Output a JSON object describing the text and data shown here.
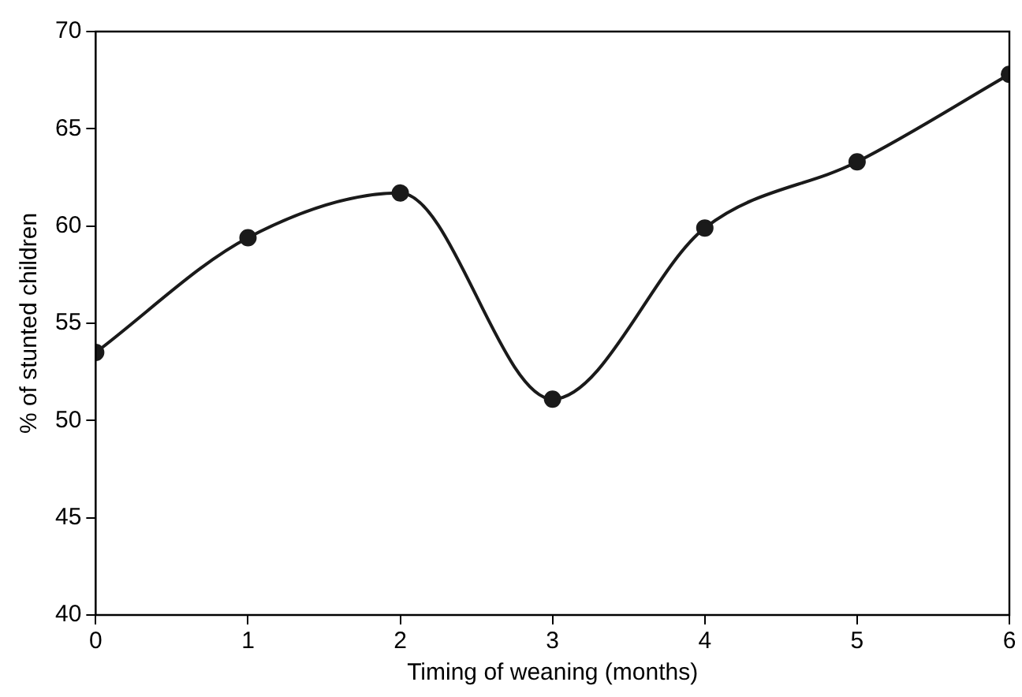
{
  "chart_data": {
    "type": "line",
    "xlabel": "Timing of weaning (months)",
    "ylabel": "% of stunted children",
    "x": [
      0,
      1,
      2,
      3,
      4,
      5,
      6
    ],
    "series": [
      {
        "color": "#1a1a1a",
        "values": [
          53.5,
          59.4,
          61.7,
          51.1,
          59.9,
          63.3,
          67.8
        ]
      }
    ],
    "xlim": [
      0,
      6
    ],
    "xticks": [
      0,
      1,
      2,
      3,
      4,
      5,
      6
    ],
    "ylim": [
      40,
      70
    ],
    "yticks": [
      40,
      45,
      50,
      55,
      60,
      65,
      70
    ],
    "grid": false,
    "legend": false,
    "marker": "circle",
    "line_style": "solid"
  }
}
